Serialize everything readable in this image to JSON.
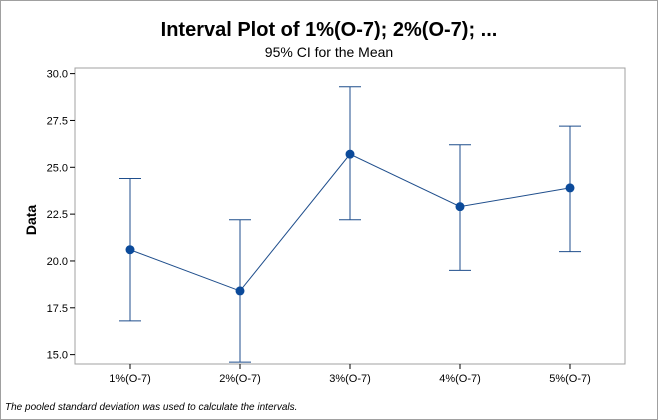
{
  "chart_data": {
    "type": "interval",
    "title": "Interval Plot of 1%(O-7); 2%(O-7); ...",
    "subtitle": "95% CI for the Mean",
    "ylabel": "Data",
    "xlabel": "",
    "ylim": [
      14.5,
      30.3
    ],
    "yticks": [
      "15.0",
      "17.5",
      "20.0",
      "22.5",
      "25.0",
      "27.5",
      "30.0"
    ],
    "categories": [
      "1%(O-7)",
      "2%(O-7)",
      "3%(O-7)",
      "4%(O-7)",
      "5%(O-7)"
    ],
    "means": [
      20.6,
      18.4,
      25.7,
      22.9,
      23.9
    ],
    "lower": [
      16.8,
      14.6,
      22.2,
      19.5,
      20.5
    ],
    "upper": [
      24.4,
      22.2,
      29.3,
      26.2,
      27.2
    ],
    "grid": false,
    "footnote": "The pooled standard deviation was used to calculate the intervals.",
    "colors": {
      "series": "#1f4e8c",
      "point": "#0b4a9a",
      "axis": "#000000",
      "frame": "#a0a0a0"
    }
  }
}
